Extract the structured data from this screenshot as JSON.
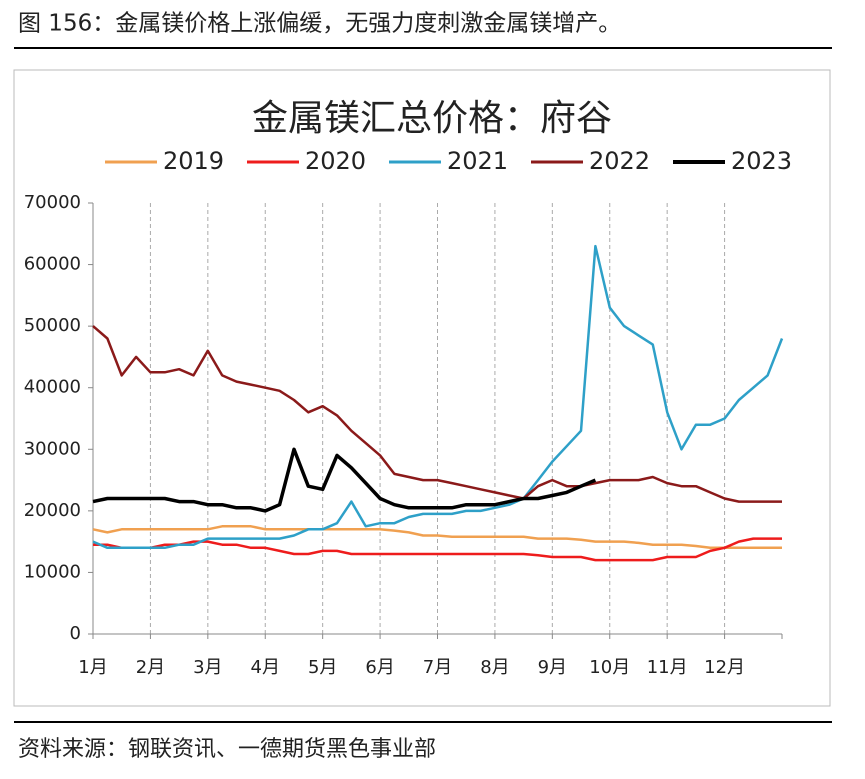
{
  "header": {
    "title": "图 156：金属镁价格上涨偏缓，无强力度刺激金属镁增产。"
  },
  "source": "资料来源：钢联资讯、一德期货黑色事业部",
  "chart_data": {
    "type": "line",
    "title": "金属镁汇总价格：府谷",
    "x": [
      1,
      1.25,
      1.5,
      1.75,
      2,
      2.25,
      2.5,
      2.75,
      3,
      3.25,
      3.5,
      3.75,
      4,
      4.25,
      4.5,
      4.75,
      5,
      5.25,
      5.5,
      5.75,
      6,
      6.25,
      6.5,
      6.75,
      7,
      7.25,
      7.5,
      7.75,
      8,
      8.25,
      8.5,
      8.75,
      9,
      9.25,
      9.5,
      9.75,
      10,
      10.25,
      10.5,
      10.75,
      11,
      11.25,
      11.5,
      11.75,
      12,
      12.25,
      12.5,
      12.75,
      13
    ],
    "series": [
      {
        "name": "2019",
        "color": "#f0a050",
        "values": [
          17000,
          16500,
          17000,
          17000,
          17000,
          17000,
          17000,
          17000,
          17000,
          17500,
          17500,
          17500,
          17000,
          17000,
          17000,
          17000,
          17000,
          17000,
          17000,
          17000,
          17000,
          16800,
          16500,
          16000,
          16000,
          15800,
          15800,
          15800,
          15800,
          15800,
          15800,
          15500,
          15500,
          15500,
          15300,
          15000,
          15000,
          15000,
          14800,
          14500,
          14500,
          14500,
          14300,
          14000,
          14000,
          14000,
          14000,
          14000,
          14000
        ]
      },
      {
        "name": "2020",
        "color": "#ee1c1c",
        "values": [
          14500,
          14500,
          14000,
          14000,
          14000,
          14500,
          14500,
          15000,
          15000,
          14500,
          14500,
          14000,
          14000,
          13500,
          13000,
          13000,
          13500,
          13500,
          13000,
          13000,
          13000,
          13000,
          13000,
          13000,
          13000,
          13000,
          13000,
          13000,
          13000,
          13000,
          13000,
          12800,
          12500,
          12500,
          12500,
          12000,
          12000,
          12000,
          12000,
          12000,
          12500,
          12500,
          12500,
          13500,
          14000,
          15000,
          15500,
          15500,
          15500
        ]
      },
      {
        "name": "2021",
        "color": "#2ea0c8",
        "values": [
          15000,
          14000,
          14000,
          14000,
          14000,
          14000,
          14500,
          14500,
          15500,
          15500,
          15500,
          15500,
          15500,
          15500,
          16000,
          17000,
          17000,
          18000,
          21500,
          17500,
          18000,
          18000,
          19000,
          19500,
          19500,
          19500,
          20000,
          20000,
          20500,
          21000,
          22000,
          25000,
          28000,
          30500,
          33000,
          63000,
          53000,
          50000,
          48500,
          47000,
          36000,
          30000,
          34000,
          34000,
          35000,
          38000,
          40000,
          42000,
          48000
        ]
      },
      {
        "name": "2022",
        "color": "#8b1a1a",
        "values": [
          50000,
          48000,
          42000,
          45000,
          42500,
          42500,
          43000,
          42000,
          46000,
          42000,
          41000,
          40500,
          40000,
          39500,
          38000,
          36000,
          37000,
          35500,
          33000,
          31000,
          29000,
          26000,
          25500,
          25000,
          25000,
          24500,
          24000,
          23500,
          23000,
          22500,
          22000,
          24000,
          25000,
          24000,
          24000,
          24500,
          25000,
          25000,
          25000,
          25500,
          24500,
          24000,
          24000,
          23000,
          22000,
          21500,
          21500,
          21500,
          21500
        ]
      },
      {
        "name": "2023",
        "color": "#000000",
        "values": [
          21500,
          22000,
          22000,
          22000,
          22000,
          22000,
          21500,
          21500,
          21000,
          21000,
          20500,
          20500,
          20000,
          21000,
          30000,
          24000,
          23500,
          29000,
          27000,
          24500,
          22000,
          21000,
          20500,
          20500,
          20500,
          20500,
          21000,
          21000,
          21000,
          21500,
          22000,
          22000,
          22500,
          23000,
          24000,
          25000,
          null,
          null,
          null,
          null,
          null,
          null,
          null,
          null,
          null,
          null,
          null,
          null,
          null
        ]
      }
    ],
    "xlim": [
      1,
      13
    ],
    "xticks": [
      {
        "value": 1,
        "label": "1月"
      },
      {
        "value": 2,
        "label": "2月"
      },
      {
        "value": 3,
        "label": "3月"
      },
      {
        "value": 4,
        "label": "4月"
      },
      {
        "value": 5,
        "label": "5月"
      },
      {
        "value": 6,
        "label": "6月"
      },
      {
        "value": 7,
        "label": "7月"
      },
      {
        "value": 8,
        "label": "8月"
      },
      {
        "value": 9,
        "label": "9月"
      },
      {
        "value": 10,
        "label": "10月"
      },
      {
        "value": 11,
        "label": "11月"
      },
      {
        "value": 12,
        "label": "12月"
      }
    ],
    "ylim": [
      0,
      70000
    ],
    "yticks": [
      0,
      10000,
      20000,
      30000,
      40000,
      50000,
      60000,
      70000
    ],
    "grid": true
  }
}
